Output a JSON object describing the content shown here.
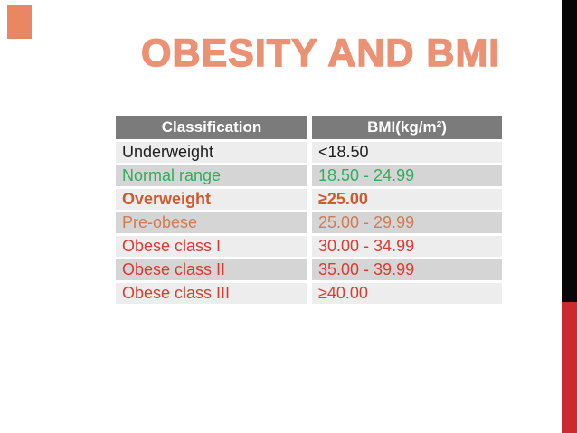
{
  "slide": {
    "title": "OBESITY AND BMI"
  },
  "table": {
    "headers": {
      "classification": "Classification",
      "bmi": "BMI(kg/m²)"
    },
    "rows": [
      {
        "classification": "Underweight",
        "bmi": "<18.50",
        "color": "#1e1e1e",
        "bold": false
      },
      {
        "classification": "Normal range",
        "bmi": "18.50 - 24.99",
        "color": "#2fae5c",
        "bold": false
      },
      {
        "classification": "Overweight",
        "bmi": "≥25.00",
        "color": "#cb5b30",
        "bold": true
      },
      {
        "classification": "Pre-obese",
        "bmi": "25.00 - 29.99",
        "color": "#cf7c52",
        "bold": false
      },
      {
        "classification": "Obese class I",
        "bmi": "30.00 - 34.99",
        "color": "#da3a32",
        "bold": false
      },
      {
        "classification": "Obese class II",
        "bmi": "35.00 - 39.99",
        "color": "#da3a32",
        "bold": false
      },
      {
        "classification": "Obese class III",
        "bmi": "≥40.00",
        "color": "#da3a32",
        "bold": false
      }
    ]
  },
  "colors": {
    "title": "#eb9174",
    "accent_square": "#ea8763",
    "header_bg": "#7b7b7b",
    "header_text": "#ffffff",
    "row_dark_bg": "#d5d5d5",
    "row_light_bg": "#ededed",
    "right_bar_black": "#070707",
    "right_bar_red": "#cc2a31"
  },
  "chart_data": {
    "type": "table",
    "title": "OBESITY AND BMI",
    "columns": [
      "Classification",
      "BMI(kg/m²)"
    ],
    "rows": [
      [
        "Underweight",
        "<18.50"
      ],
      [
        "Normal range",
        "18.50 - 24.99"
      ],
      [
        "Overweight",
        "≥25.00"
      ],
      [
        "Pre-obese",
        "25.00 - 29.99"
      ],
      [
        "Obese class I",
        "30.00 - 34.99"
      ],
      [
        "Obese class II",
        "35.00 - 39.99"
      ],
      [
        "Obese class III",
        "≥40.00"
      ]
    ]
  }
}
